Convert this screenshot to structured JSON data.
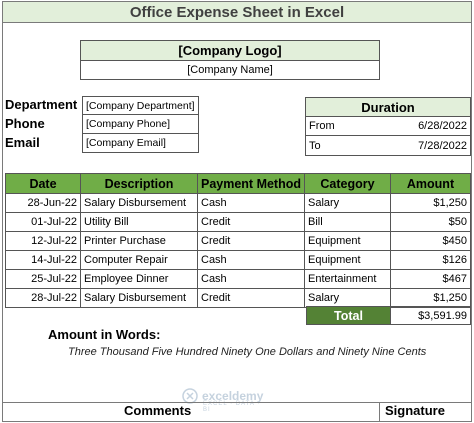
{
  "title": "Office Expense Sheet in Excel",
  "company": {
    "logo": "[Company Logo]",
    "name": "[Company Name]"
  },
  "info": [
    {
      "label": "Department",
      "value": "[Company Department]"
    },
    {
      "label": "Phone",
      "value": "[Company Phone]"
    },
    {
      "label": "Email",
      "value": "[Company Email]"
    }
  ],
  "duration": {
    "heading": "Duration",
    "from_label": "From",
    "from_value": "6/28/2022",
    "to_label": "To",
    "to_value": "7/28/2022"
  },
  "table": {
    "headers": [
      "Date",
      "Description",
      "Payment Method",
      "Category",
      "Amount"
    ],
    "rows": [
      [
        "28-Jun-22",
        "Salary Disbursement",
        "Cash",
        "Salary",
        "$1,250"
      ],
      [
        "01-Jul-22",
        "Utility Bill",
        "Credit",
        "Bill",
        "$50"
      ],
      [
        "12-Jul-22",
        "Printer Purchase",
        "Credit",
        "Equipment",
        "$450"
      ],
      [
        "14-Jul-22",
        "Computer Repair",
        "Cash",
        "Equipment",
        "$126"
      ],
      [
        "25-Jul-22",
        "Employee Dinner",
        "Cash",
        "Entertainment",
        "$467"
      ],
      [
        "28-Jul-22",
        "Salary Disbursement",
        "Credit",
        "Salary",
        "$1,250"
      ]
    ]
  },
  "total": {
    "label": "Total",
    "value": "$3,591.99"
  },
  "amount_in_words": {
    "label": "Amount in Words:",
    "text": "Three Thousand Five Hundred Ninety One Dollars and Ninety Nine Cents"
  },
  "watermark": {
    "name": "exceldemy",
    "tagline": "EXCEL · DATA · BI"
  },
  "footer": {
    "comments": "Comments",
    "signature": "Signature"
  },
  "colors": {
    "header_green": "#70ad47",
    "total_green": "#548235",
    "light_green": "#e2efda"
  }
}
